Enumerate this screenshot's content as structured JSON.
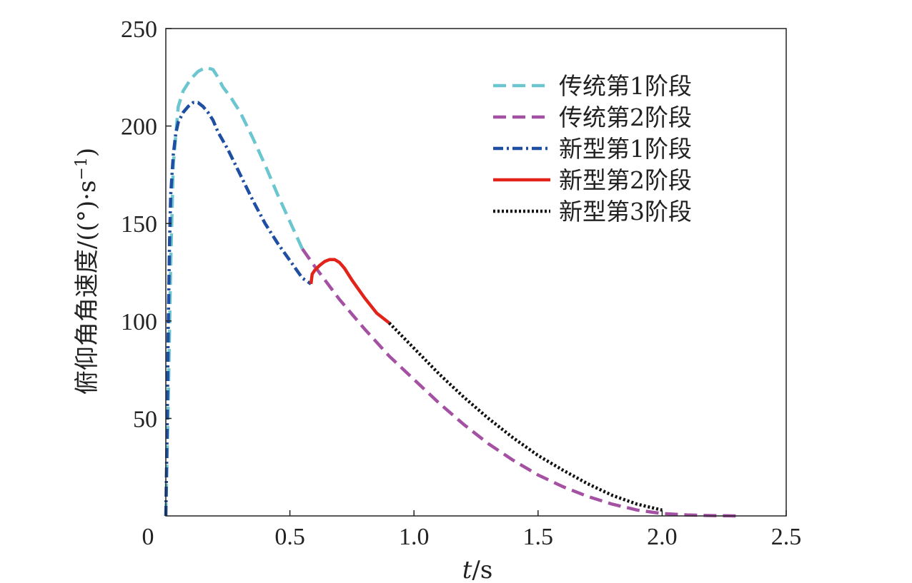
{
  "chart_data": {
    "type": "line",
    "xlabel_italic": "t",
    "xlabel_unit": "/s",
    "ylabel": "俯仰角角速度/((°)·s",
    "ylabel_sup": "−1",
    "ylabel_close": ")",
    "xlim": [
      0,
      2.5
    ],
    "ylim": [
      0,
      250
    ],
    "x_ticks": [
      0,
      0.5,
      1.0,
      1.5,
      2.0,
      2.5
    ],
    "x_tick_labels": [
      "0",
      "0.5",
      "1.0",
      "1.5",
      "2.0",
      "2.5"
    ],
    "y_ticks": [
      50,
      100,
      150,
      200,
      250
    ],
    "y_tick_labels": [
      "50",
      "100",
      "150",
      "200",
      "250"
    ],
    "grid": false,
    "legend_position": "top-right",
    "series": [
      {
        "name": "传统第1阶段",
        "color": "#6cc6d0",
        "dash": "dashed",
        "x": [
          0.0,
          0.01,
          0.02,
          0.03,
          0.05,
          0.07,
          0.1,
          0.13,
          0.16,
          0.19,
          0.21,
          0.23,
          0.26,
          0.3,
          0.35,
          0.4,
          0.45,
          0.5,
          0.55
        ],
        "y": [
          0,
          60,
          130,
          180,
          210,
          218,
          224,
          228,
          230,
          229,
          225,
          220,
          215,
          207,
          194,
          180,
          165,
          151,
          137
        ]
      },
      {
        "name": "传统第2阶段",
        "color": "#a451a3",
        "dash": "dashed",
        "x": [
          0.55,
          0.6,
          0.7,
          0.8,
          0.9,
          1.0,
          1.1,
          1.2,
          1.3,
          1.4,
          1.5,
          1.6,
          1.7,
          1.8,
          1.9,
          2.0,
          2.1,
          2.2,
          2.3
        ],
        "y": [
          137,
          128,
          111,
          96,
          82,
          70,
          58,
          47,
          37,
          28.5,
          21,
          15,
          10,
          6,
          3,
          1.2,
          0.5,
          0.2,
          0
        ]
      },
      {
        "name": "新型第1阶段",
        "color": "#1f4fa3",
        "dash": "dashdot",
        "x": [
          0.0,
          0.005,
          0.01,
          0.015,
          0.02,
          0.03,
          0.04,
          0.05,
          0.07,
          0.09,
          0.11,
          0.13,
          0.15,
          0.17,
          0.19,
          0.21,
          0.25,
          0.3,
          0.35,
          0.4,
          0.45,
          0.5,
          0.55,
          0.585
        ],
        "y": [
          0,
          40,
          100,
          140,
          165,
          185,
          196,
          202,
          207,
          210,
          212,
          212,
          210,
          207,
          203,
          197,
          188,
          175,
          162,
          150,
          140,
          131,
          122,
          119
        ]
      },
      {
        "name": "新型第2阶段",
        "color": "#e2231a",
        "dash": "solid",
        "x": [
          0.585,
          0.59,
          0.6,
          0.62,
          0.64,
          0.66,
          0.68,
          0.7,
          0.72,
          0.75,
          0.8,
          0.85,
          0.9
        ],
        "y": [
          119,
          124,
          126,
          128.5,
          130.5,
          131.5,
          131.5,
          130,
          127,
          121,
          112,
          104,
          99
        ]
      },
      {
        "name": "新型第3阶段",
        "color": "#111111",
        "dash": "dotted",
        "x": [
          0.9,
          1.0,
          1.1,
          1.2,
          1.3,
          1.4,
          1.5,
          1.6,
          1.7,
          1.8,
          1.9,
          2.0
        ],
        "y": [
          99,
          86,
          73,
          61,
          50,
          40,
          31,
          23.5,
          16.5,
          10.5,
          6,
          3
        ]
      }
    ]
  }
}
